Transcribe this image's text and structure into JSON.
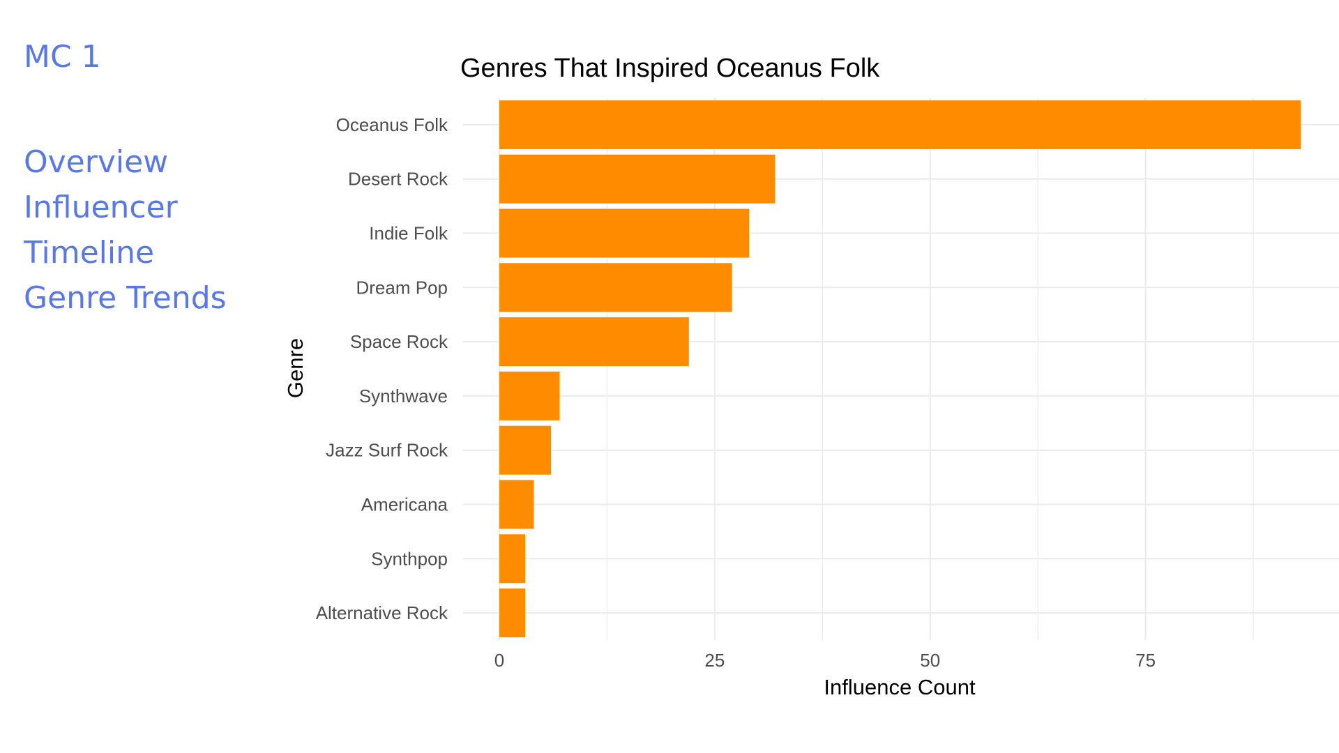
{
  "nav": {
    "brand": "MC 1",
    "items": [
      {
        "label": "Overview"
      },
      {
        "label": "Influencer"
      },
      {
        "label": "Timeline"
      },
      {
        "label": "Genre Trends"
      }
    ]
  },
  "chart_data": {
    "type": "bar",
    "orientation": "horizontal",
    "title": "Genres That Inspired Oceanus Folk",
    "xlabel": "Influence Count",
    "ylabel": "Genre",
    "categories": [
      "Oceanus Folk",
      "Desert Rock",
      "Indie Folk",
      "Dream Pop",
      "Space Rock",
      "Synthwave",
      "Jazz Surf Rock",
      "Americana",
      "Synthpop",
      "Alternative Rock"
    ],
    "values": [
      93,
      32,
      29,
      27,
      22,
      7,
      6,
      4,
      3,
      3
    ],
    "xticks": [
      0,
      25,
      50,
      75
    ],
    "xlim": [
      0,
      97
    ],
    "grid": true,
    "bar_color": "#ff8c00",
    "grid_color": "#ebebeb"
  }
}
